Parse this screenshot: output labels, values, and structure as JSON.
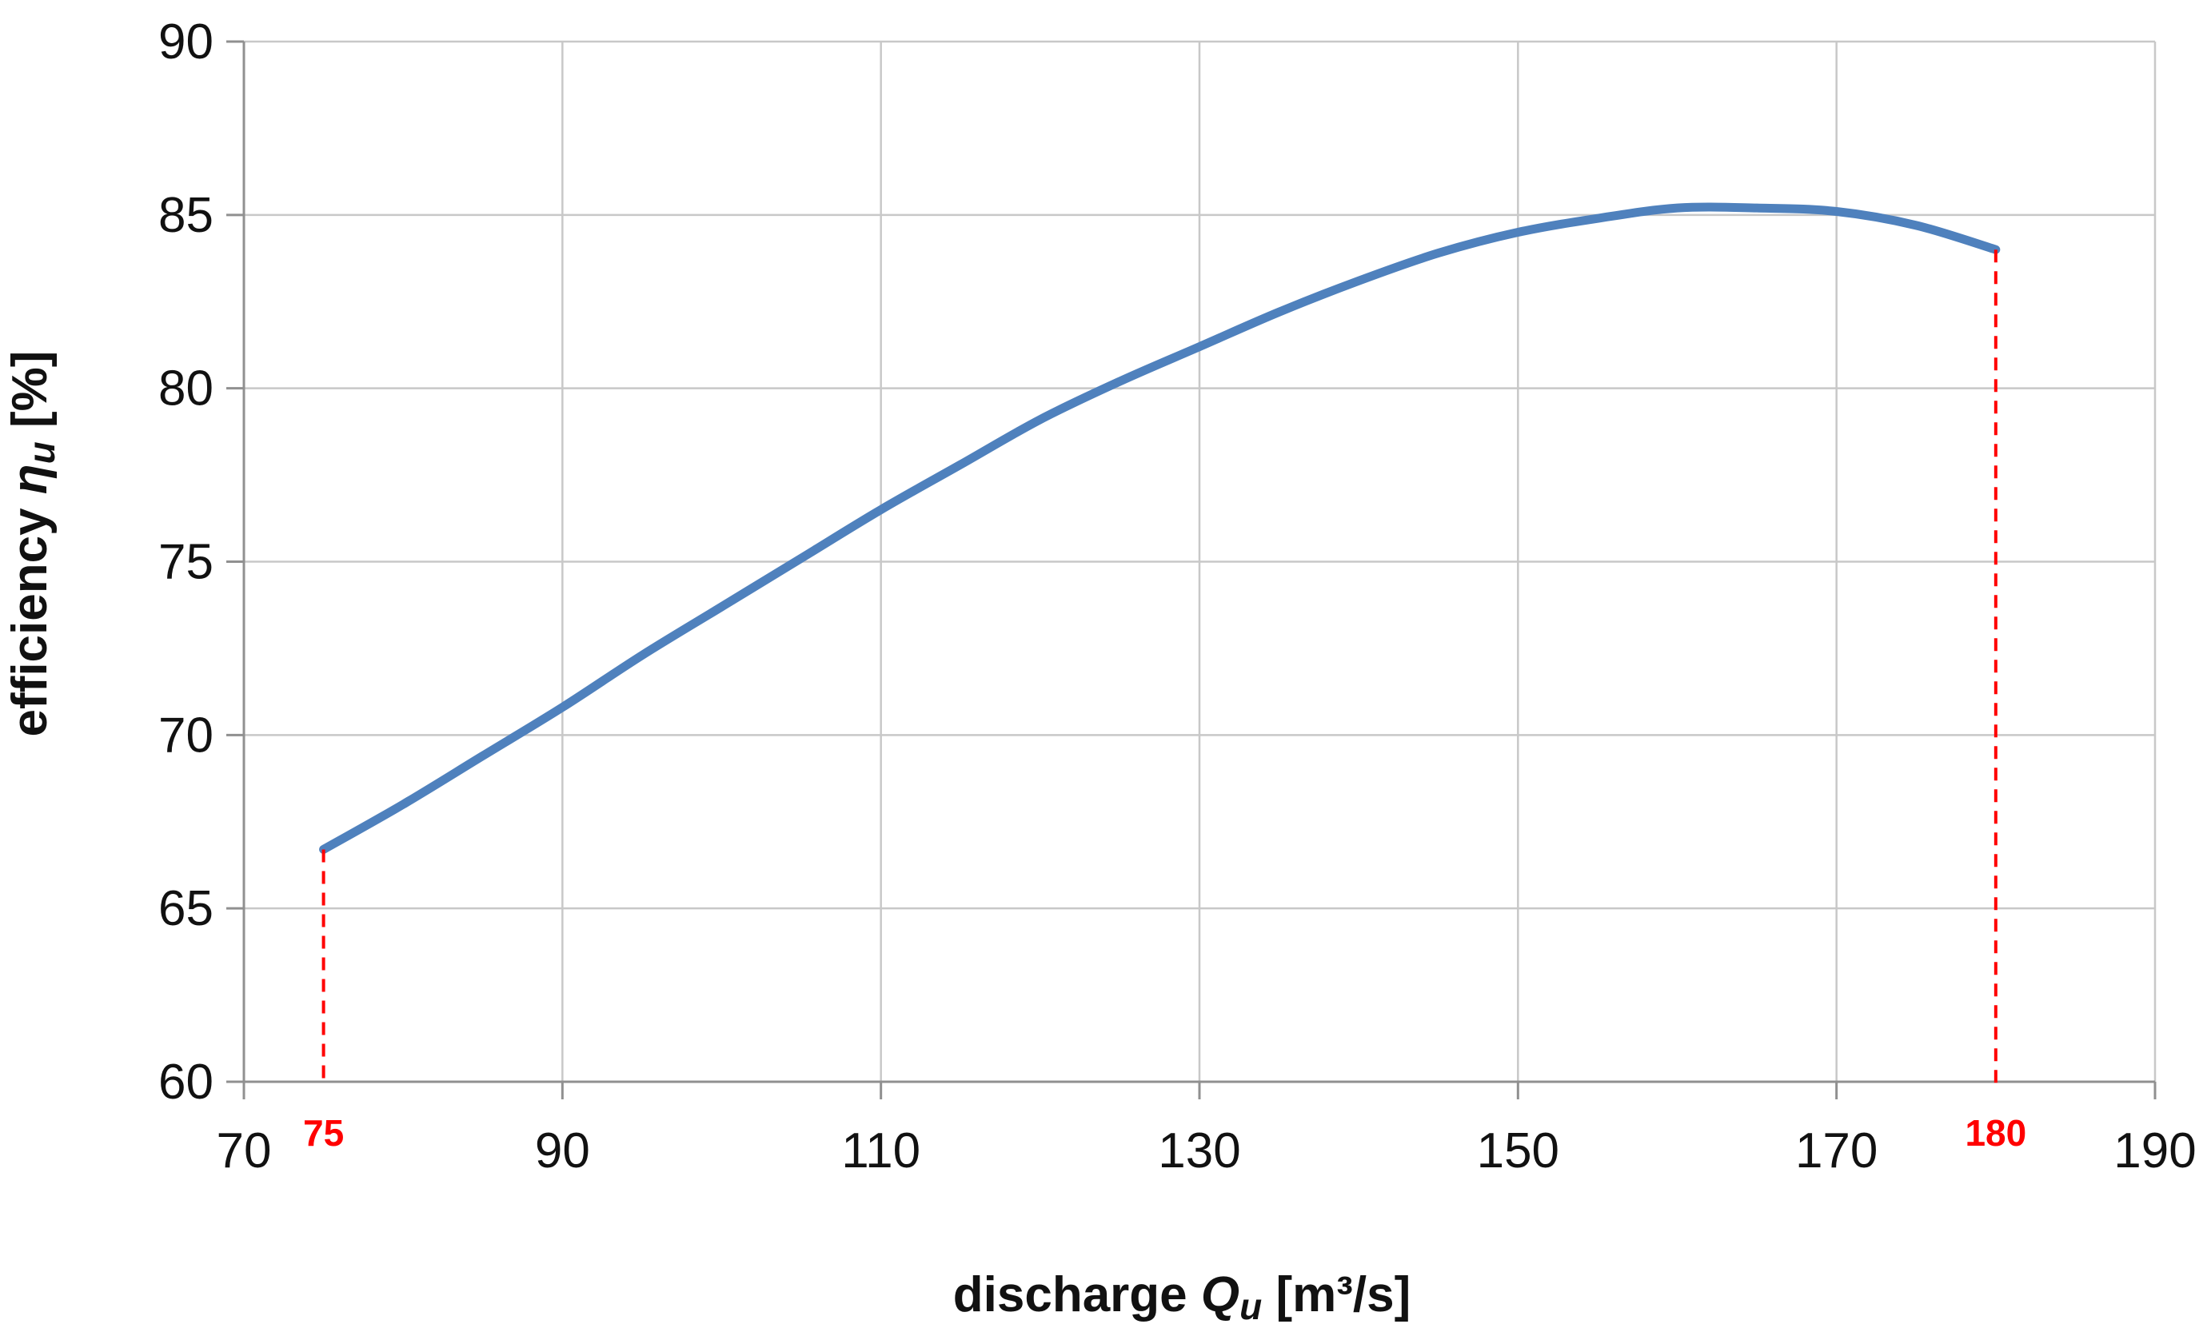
{
  "chart_data": {
    "type": "line",
    "title": "",
    "xlabel": {
      "prefix": "discharge ",
      "symbol": "Q",
      "subscript": "u",
      "unit": " [m³/s]"
    },
    "ylabel": {
      "prefix": "efficiency ",
      "symbol": "η",
      "subscript": "u",
      "unit": " [%]"
    },
    "xlim": [
      70,
      190
    ],
    "ylim": [
      60,
      90
    ],
    "xticks": [
      "70",
      "90",
      "110",
      "130",
      "150",
      "170",
      "190"
    ],
    "yticks": [
      "60",
      "65",
      "70",
      "75",
      "80",
      "85",
      "90"
    ],
    "grid": true,
    "legend": "none",
    "line_color": "#4f81bd",
    "marker_color": "#ff0000",
    "series": [
      {
        "x": [
          75,
          80,
          85,
          90,
          95,
          100,
          105,
          110,
          115,
          120,
          125,
          130,
          135,
          140,
          145,
          150,
          155,
          160,
          165,
          170,
          175,
          180
        ],
        "y": [
          66.7,
          68.0,
          69.4,
          70.8,
          72.3,
          73.7,
          75.1,
          76.5,
          77.8,
          79.1,
          80.2,
          81.2,
          82.2,
          83.1,
          83.9,
          84.5,
          84.9,
          85.2,
          85.2,
          85.1,
          84.7,
          84.0
        ]
      }
    ],
    "markers": [
      {
        "x": 75,
        "y": 66.7,
        "label": "75"
      },
      {
        "x": 180,
        "y": 84.0,
        "label": "180"
      }
    ]
  }
}
